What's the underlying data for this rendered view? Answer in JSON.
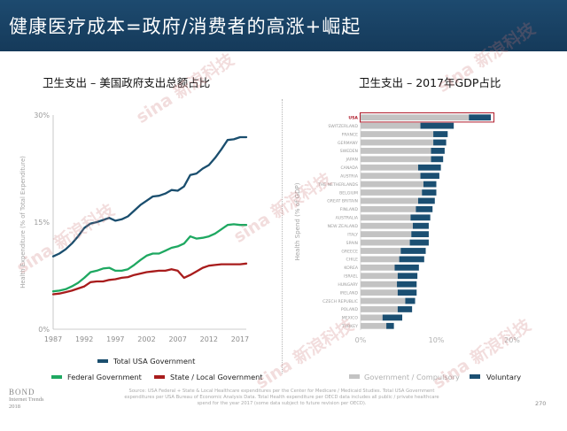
{
  "header": {
    "title": "健康医疗成本=政府/消费者的高涨+崛起"
  },
  "left_chart": {
    "subtitle": "卫生支出 – 美国政府支出总额占比"
  },
  "right_chart": {
    "subtitle": "卫生支出 – 2017年GDP占比"
  },
  "watermark": {
    "text": "新浪科技",
    "brand": "sina"
  },
  "footer": {
    "logo_main": "BOND",
    "logo_sub1": "Internet Trends",
    "logo_sub2": "2018",
    "source": "Source: USA Federal + State & Local Healthcare expenditures per the Center for Medicare / Medicaid Studies. Total USA Government expenditures per USA Bureau of Economic Analysis Data. Total Health expenditure per OECD data includes all public / private healthcare spend for the year 2017 (some data subject to future revision per OECD).",
    "page": "270"
  },
  "colors": {
    "header_bg": "#1b4468",
    "total": "#1a4e6e",
    "federal": "#1ea861",
    "state": "#a81c1c",
    "gov_bar": "#c3c3c3",
    "vol_bar": "#1b4f72",
    "highlight": "#b01c2c"
  },
  "chart_data": [
    {
      "type": "line",
      "title": "卫生支出 – 美国政府支出总额占比",
      "ylabel": "Health Expenditure (% of Total Expenditure)",
      "xlabel": "",
      "xlim": [
        1987,
        2018
      ],
      "ylim": [
        0,
        30
      ],
      "x_ticks": [
        "1987",
        "1992",
        "1997",
        "2002",
        "2007",
        "2012",
        "2017"
      ],
      "y_ticks": [
        "0%",
        "15%",
        "30%"
      ],
      "grid": false,
      "legend": "bottom",
      "x": [
        1987,
        1988,
        1989,
        1990,
        1991,
        1992,
        1993,
        1994,
        1995,
        1996,
        1997,
        1998,
        1999,
        2000,
        2001,
        2002,
        2003,
        2004,
        2005,
        2006,
        2007,
        2008,
        2009,
        2010,
        2011,
        2012,
        2013,
        2014,
        2015,
        2016,
        2017,
        2018
      ],
      "series": [
        {
          "name": "Total USA Government",
          "color": "#1a4e6e",
          "values": [
            10.2,
            10.6,
            11.2,
            12.0,
            13.0,
            14.2,
            14.8,
            15.0,
            15.3,
            15.6,
            15.2,
            15.4,
            15.8,
            16.6,
            17.4,
            18.0,
            18.6,
            18.7,
            19.0,
            19.5,
            19.4,
            20.0,
            21.6,
            21.8,
            22.5,
            23.0,
            24.0,
            25.2,
            26.5,
            26.6,
            26.9,
            26.9
          ]
        },
        {
          "name": "Federal Government",
          "color": "#1ea861",
          "values": [
            5.3,
            5.4,
            5.6,
            6.0,
            6.5,
            7.2,
            8.0,
            8.2,
            8.5,
            8.6,
            8.2,
            8.2,
            8.4,
            9.0,
            9.7,
            10.3,
            10.6,
            10.6,
            11.0,
            11.4,
            11.6,
            12.0,
            13.0,
            12.7,
            12.8,
            13.0,
            13.4,
            14.0,
            14.6,
            14.7,
            14.6,
            14.6
          ]
        },
        {
          "name": "State / Local Government",
          "color": "#a81c1c",
          "values": [
            4.9,
            5.0,
            5.2,
            5.4,
            5.7,
            6.0,
            6.6,
            6.7,
            6.7,
            6.9,
            7.0,
            7.2,
            7.3,
            7.6,
            7.8,
            8.0,
            8.1,
            8.2,
            8.2,
            8.4,
            8.2,
            7.2,
            7.6,
            8.1,
            8.6,
            8.9,
            9.0,
            9.1,
            9.1,
            9.1,
            9.1,
            9.2
          ]
        }
      ]
    },
    {
      "type": "bar",
      "orientation": "horizontal",
      "stacked": true,
      "title": "卫生支出 – 2017年GDP占比",
      "ylabel": "Health Spend (% of GDP)",
      "xlim": [
        0,
        20
      ],
      "x_ticks": [
        "0%",
        "10%",
        "20%"
      ],
      "grid": false,
      "legend": "bottom",
      "highlight": "USA",
      "categories": [
        "USA",
        "SWITZERLAND",
        "FRANCE",
        "GERMANY",
        "SWEDEN",
        "JAPAN",
        "CANADA",
        "AUSTRIA",
        "THE NETHERLANDS",
        "BELGIUM",
        "GREAT BRITAIN",
        "FINLAND",
        "AUSTRALIA",
        "NEW ZEALAND",
        "ITALY",
        "SPAIN",
        "GREECE",
        "CHILE",
        "KOREA",
        "ISRAEL",
        "HUNGARY",
        "IRELAND",
        "CZECH REPUBLIC",
        "POLAND",
        "MEXICO",
        "TURKEY"
      ],
      "series": [
        {
          "name": "Government / Compulsory",
          "color": "#c3c3c3",
          "values": [
            14.3,
            7.9,
            9.6,
            9.6,
            9.3,
            9.3,
            7.6,
            7.9,
            8.3,
            8.1,
            7.6,
            7.3,
            6.6,
            6.9,
            6.7,
            6.5,
            5.3,
            5.1,
            4.5,
            4.9,
            4.8,
            4.9,
            5.9,
            4.9,
            2.9,
            3.4
          ]
        },
        {
          "name": "Voluntary",
          "color": "#1b4f72",
          "values": [
            2.9,
            4.4,
            1.9,
            1.7,
            1.8,
            1.6,
            3.0,
            2.5,
            1.7,
            1.9,
            2.2,
            2.2,
            2.6,
            2.1,
            2.3,
            2.5,
            3.3,
            3.3,
            3.2,
            2.6,
            2.6,
            2.5,
            1.3,
            1.9,
            2.6,
            1.0
          ]
        }
      ]
    }
  ]
}
